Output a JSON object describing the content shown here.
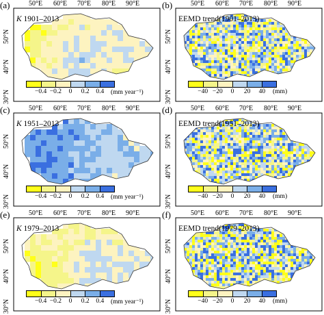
{
  "colors": {
    "yellow": "#ffff1a",
    "lightyellow": "#f5f58a",
    "cream": "#fdf3c0",
    "lightblue": "#bfd8f0",
    "midblue": "#7aaee8",
    "blue": "#3a6fe0",
    "frame": "#000000"
  },
  "lon_ticks": [
    "50°E",
    "60°E",
    "70°E",
    "80°E",
    "90°E"
  ],
  "lat_ticks": [
    "50°N",
    "40°N",
    "30°N"
  ],
  "panels": [
    {
      "letter": "(a)",
      "title_k": "K",
      "title": " 1901–2013",
      "ticks": [
        "−0.4",
        "−0.2",
        "0",
        "0.2",
        "0.4"
      ],
      "unit": "(mm year⁻¹)",
      "style": "k",
      "seed": 11
    },
    {
      "letter": "(b)",
      "title_k": "",
      "title": "EEMD trend(1901–2013)",
      "ticks": [
        "−40",
        "−20",
        "0",
        "20",
        "40"
      ],
      "unit": "(mm)",
      "style": "e",
      "seed": 23
    },
    {
      "letter": "(c)",
      "title_k": "K",
      "title": " 1951–2013",
      "ticks": [
        "−0.4",
        "−0.2",
        "0",
        "0.2",
        "0.4"
      ],
      "unit": "(mm year⁻¹)",
      "style": "k",
      "seed": 37
    },
    {
      "letter": "(d)",
      "title_k": "",
      "title": "EEMD trend(1951–2013)",
      "ticks": [
        "−40",
        "−20",
        "0",
        "20",
        "40"
      ],
      "unit": "(mm)",
      "style": "e",
      "seed": 41
    },
    {
      "letter": "(e)",
      "title_k": "K",
      "title": " 1979–2013",
      "ticks": [
        "−0.4",
        "−0.2",
        "0",
        "0.2",
        "0.4"
      ],
      "unit": "(mm year⁻¹)",
      "style": "k",
      "seed": 53
    },
    {
      "letter": "(f)",
      "title_k": "",
      "title": "EEMD trend(1979–2013)",
      "ticks": [
        "−40",
        "−20",
        "0",
        "20",
        "40"
      ],
      "unit": "(mm)",
      "style": "e",
      "seed": 67
    }
  ]
}
